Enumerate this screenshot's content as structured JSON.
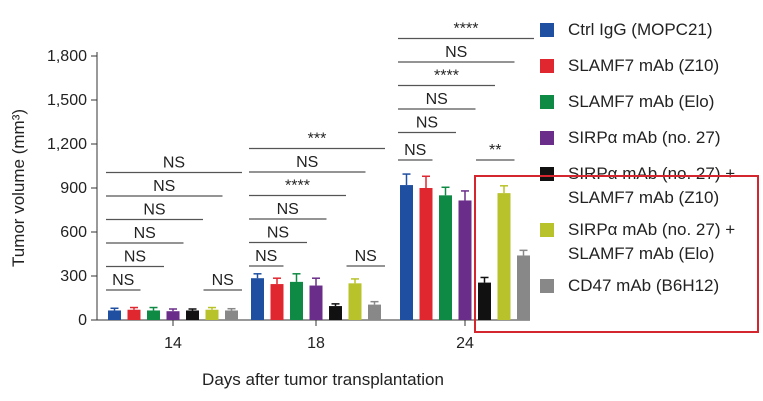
{
  "chart_data": {
    "type": "bar",
    "xlabel": "Days after tumor transplantation",
    "ylabel": "Tumor volume (mm³)",
    "ylim": [
      0,
      1800
    ],
    "yticks": [
      "0",
      "300",
      "600",
      "900",
      "1,200",
      "1,500",
      "1,800"
    ],
    "ytick_values": [
      0,
      300,
      600,
      900,
      1200,
      1500,
      1800
    ],
    "categories": [
      "14",
      "18",
      "24"
    ],
    "series": [
      {
        "name": "Ctrl IgG (MOPC21)",
        "color": "#1f4fa0",
        "values": [
          65,
          285,
          920
        ],
        "errors": [
          15,
          30,
          75
        ]
      },
      {
        "name": "SLAMF7 mAb (Z10)",
        "color": "#e0262f",
        "values": [
          70,
          245,
          900
        ],
        "errors": [
          15,
          40,
          80
        ]
      },
      {
        "name": "SLAMF7 mAb (Elo)",
        "color": "#0f8a45",
        "values": [
          65,
          260,
          850
        ],
        "errors": [
          20,
          55,
          55
        ]
      },
      {
        "name": "SIRPα mAb (no. 27)",
        "color": "#6a2d8a",
        "values": [
          60,
          235,
          815
        ],
        "errors": [
          15,
          50,
          65
        ]
      },
      {
        "name": "SIRPα mAb (no. 27) +\nSLAMF7 mAb (Z10)",
        "color": "#111111",
        "values": [
          65,
          95,
          255
        ],
        "errors": [
          10,
          15,
          35
        ]
      },
      {
        "name": "SIRPα mAb (no. 27) +\nSLAMF7 mAb (Elo)",
        "color": "#b8c22a",
        "values": [
          70,
          250,
          865
        ],
        "errors": [
          15,
          30,
          50
        ]
      },
      {
        "name": "CD47 mAb (B6H12)",
        "color": "#888888",
        "values": [
          65,
          105,
          440
        ],
        "errors": [
          12,
          20,
          35
        ]
      }
    ],
    "significance": [
      {
        "group": "14",
        "label": "NS",
        "from": 0,
        "to": 1,
        "level": 0
      },
      {
        "group": "14",
        "label": "NS",
        "from": 0,
        "to": 2,
        "level": 1
      },
      {
        "group": "14",
        "label": "NS",
        "from": 0,
        "to": 3,
        "level": 2
      },
      {
        "group": "14",
        "label": "NS",
        "from": 0,
        "to": 4,
        "level": 3
      },
      {
        "group": "14",
        "label": "NS",
        "from": 0,
        "to": 5,
        "level": 4
      },
      {
        "group": "14",
        "label": "NS",
        "from": 0,
        "to": 6,
        "level": 5
      },
      {
        "group": "14",
        "label": "NS",
        "from": 5,
        "to": 6,
        "level": 0
      },
      {
        "group": "18",
        "label": "NS",
        "from": 0,
        "to": 1,
        "level": 0
      },
      {
        "group": "18",
        "label": "NS",
        "from": 0,
        "to": 2,
        "level": 1
      },
      {
        "group": "18",
        "label": "NS",
        "from": 0,
        "to": 3,
        "level": 2
      },
      {
        "group": "18",
        "label": "****",
        "from": 0,
        "to": 4,
        "level": 3
      },
      {
        "group": "18",
        "label": "NS",
        "from": 0,
        "to": 5,
        "level": 4
      },
      {
        "group": "18",
        "label": "***",
        "from": 0,
        "to": 6,
        "level": 5
      },
      {
        "group": "18",
        "label": "NS",
        "from": 5,
        "to": 6,
        "level": 0
      },
      {
        "group": "24",
        "label": "NS",
        "from": 0,
        "to": 1,
        "level": 0
      },
      {
        "group": "24",
        "label": "NS",
        "from": 0,
        "to": 2,
        "level": 1
      },
      {
        "group": "24",
        "label": "NS",
        "from": 0,
        "to": 3,
        "level": 2
      },
      {
        "group": "24",
        "label": "****",
        "from": 0,
        "to": 4,
        "level": 3
      },
      {
        "group": "24",
        "label": "NS",
        "from": 0,
        "to": 5,
        "level": 4
      },
      {
        "group": "24",
        "label": "****",
        "from": 0,
        "to": 6,
        "level": 5
      },
      {
        "group": "24",
        "label": "**",
        "from": 4,
        "to": 5,
        "level": 0
      }
    ],
    "legend_position": "right",
    "highlight": "red box around legend entries 5–7"
  }
}
